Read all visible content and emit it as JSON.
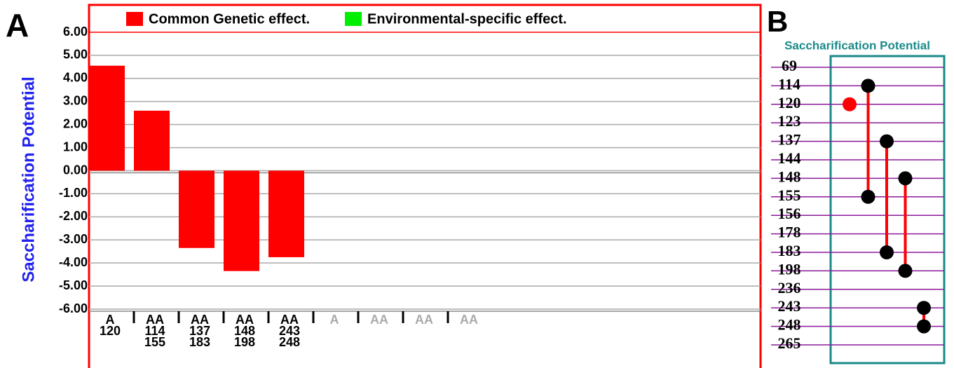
{
  "chart_data": [
    {
      "type": "bar",
      "panel_label": "A",
      "ylabel": "Saccharification Potential",
      "series": [
        {
          "name": "Common Genetic effect.",
          "color": "#ff0000",
          "values": [
            4.55,
            2.6,
            -3.35,
            -4.35,
            -3.75,
            null,
            null,
            null,
            null
          ]
        },
        {
          "name": "Environmental-specific effect.",
          "color": "#00ee00",
          "values": [
            null,
            null,
            null,
            null,
            null,
            null,
            null,
            null,
            null
          ]
        }
      ],
      "categories": [
        [
          "A",
          "120"
        ],
        [
          "AA",
          "114",
          "155"
        ],
        [
          "AA",
          "137",
          "183"
        ],
        [
          "AA",
          "148",
          "198"
        ],
        [
          "AA",
          "243",
          "248"
        ],
        [
          "A"
        ],
        [
          "AA"
        ],
        [
          "AA"
        ],
        [
          "AA"
        ]
      ],
      "ylim": [
        -6,
        6
      ],
      "yticks": [
        {
          "value": 6,
          "label": "6.00"
        },
        {
          "value": 5,
          "label": "5.00"
        },
        {
          "value": 4,
          "label": "4.00"
        },
        {
          "value": 3,
          "label": "3.00"
        },
        {
          "value": 2,
          "label": "2.00"
        },
        {
          "value": 1,
          "label": "1.00"
        },
        {
          "value": 0,
          "label": "0.00"
        },
        {
          "value": -1,
          "label": "-1.00"
        },
        {
          "value": -2,
          "label": "-2.00"
        },
        {
          "value": -3,
          "label": "-3.00"
        },
        {
          "value": -4,
          "label": "-4.00"
        },
        {
          "value": -5,
          "label": "-5.00"
        },
        {
          "value": -6,
          "label": "-6.00"
        }
      ],
      "grid": true
    },
    {
      "type": "interaction",
      "panel_label": "B",
      "title": "Saccharification Potential",
      "markers": [
        69,
        114,
        120,
        123,
        137,
        144,
        148,
        155,
        156,
        178,
        183,
        198,
        236,
        243,
        248,
        265
      ],
      "groups": [
        {
          "color": "#ff0000",
          "markers": [
            120
          ]
        },
        {
          "color": "#000000",
          "markers": [
            114,
            155
          ]
        },
        {
          "color": "#000000",
          "markers": [
            137,
            183
          ]
        },
        {
          "color": "#000000",
          "markers": [
            148,
            198
          ]
        },
        {
          "color": "#000000",
          "markers": [
            243,
            248
          ]
        }
      ]
    }
  ]
}
